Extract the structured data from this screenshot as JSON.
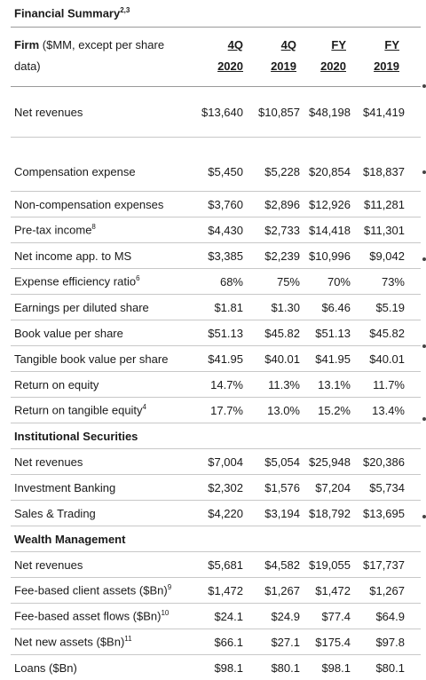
{
  "title": "Financial Summary",
  "title_sup": "2,3",
  "header": {
    "firm": "Firm",
    "firm_note": " ($MM, except per share",
    "firm_note2": "data)",
    "cols": [
      "4Q",
      "2020",
      "4Q",
      "2019",
      "FY",
      "2020",
      "FY",
      "2019"
    ]
  },
  "net_revenues": {
    "label": "Net revenues",
    "values": [
      "$13,640",
      "$10,857",
      "$48,198",
      "$41,419"
    ]
  },
  "rows": [
    {
      "label": "Compensation expense",
      "sup": "",
      "values": [
        "$5,450",
        "$5,228",
        "$20,854",
        "$18,837"
      ]
    },
    {
      "label": "Non-compensation expenses",
      "sup": "",
      "values": [
        "$3,760",
        "$2,896",
        "$12,926",
        "$11,281"
      ]
    },
    {
      "label": "Pre-tax income",
      "sup": "8",
      "values": [
        "$4,430",
        "$2,733",
        "$14,418",
        "$11,301"
      ]
    },
    {
      "label": "Net income app. to MS",
      "sup": "",
      "values": [
        "$3,385",
        "$2,239",
        "$10,996",
        "$9,042"
      ]
    },
    {
      "label": "Expense efficiency ratio",
      "sup": "6",
      "values": [
        "68%",
        "75%",
        "70%",
        "73%"
      ]
    },
    {
      "label": "Earnings per diluted share",
      "sup": "",
      "values": [
        "$1.81",
        "$1.30",
        "$6.46",
        "$5.19"
      ]
    },
    {
      "label": "Book value per share",
      "sup": "",
      "values": [
        "$51.13",
        "$45.82",
        "$51.13",
        "$45.82"
      ]
    },
    {
      "label": "Tangible book value per share",
      "sup": "",
      "values": [
        "$41.95",
        "$40.01",
        "$41.95",
        "$40.01"
      ]
    },
    {
      "label": "Return on equity",
      "sup": "",
      "values": [
        "14.7%",
        "11.3%",
        "13.1%",
        "11.7%"
      ]
    },
    {
      "label": "Return on tangible equity",
      "sup": "4",
      "values": [
        "17.7%",
        "13.0%",
        "15.2%",
        "13.4%"
      ]
    }
  ],
  "inst": {
    "heading": "Institutional Securities",
    "rows": [
      {
        "label": "Net revenues",
        "values": [
          "$7,004",
          "$5,054",
          "$25,948",
          "$20,386"
        ]
      },
      {
        "label": "Investment Banking",
        "values": [
          "$2,302",
          "$1,576",
          "$7,204",
          "$5,734"
        ]
      },
      {
        "label": "Sales & Trading",
        "values": [
          "$4,220",
          "$3,194",
          "$18,792",
          "$13,695"
        ]
      }
    ]
  },
  "wealth": {
    "heading": "Wealth Management",
    "rows": [
      {
        "label": "Net revenues",
        "sup": "",
        "values": [
          "$5,681",
          "$4,582",
          "$19,055",
          "$17,737"
        ]
      },
      {
        "label": "Fee-based client assets ($Bn)",
        "sup": "9",
        "values": [
          "$1,472",
          "$1,267",
          "$1,472",
          "$1,267"
        ]
      },
      {
        "label": "Fee-based asset flows ($Bn)",
        "sup": "10",
        "values": [
          "$24.1",
          "$24.9",
          "$77.4",
          "$64.9"
        ]
      },
      {
        "label": "Net new assets ($Bn)",
        "sup": "11",
        "values": [
          "$66.1",
          "$27.1",
          "$175.4",
          "$97.8"
        ]
      },
      {
        "label": "Loans ($Bn)",
        "sup": "",
        "values": [
          "$98.1",
          "$80.1",
          "$98.1",
          "$80.1"
        ]
      }
    ]
  }
}
